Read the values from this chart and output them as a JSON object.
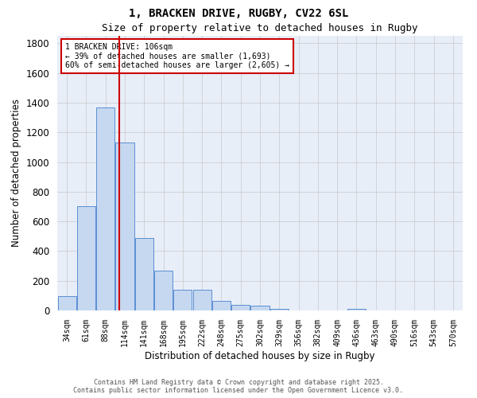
{
  "title1": "1, BRACKEN DRIVE, RUGBY, CV22 6SL",
  "title2": "Size of property relative to detached houses in Rugby",
  "xlabel": "Distribution of detached houses by size in Rugby",
  "ylabel": "Number of detached properties",
  "categories": [
    "34sqm",
    "61sqm",
    "88sqm",
    "114sqm",
    "141sqm",
    "168sqm",
    "195sqm",
    "222sqm",
    "248sqm",
    "275sqm",
    "302sqm",
    "329sqm",
    "356sqm",
    "382sqm",
    "409sqm",
    "436sqm",
    "463sqm",
    "490sqm",
    "516sqm",
    "543sqm",
    "570sqm"
  ],
  "values": [
    95,
    700,
    1370,
    1130,
    490,
    270,
    140,
    140,
    65,
    35,
    30,
    10,
    0,
    0,
    0,
    10,
    0,
    0,
    0,
    0,
    0
  ],
  "bar_color": "#c5d8f0",
  "bar_edge_color": "#5b8fd4",
  "vline_x": 2.72,
  "vline_color": "#cc0000",
  "annotation_text": "1 BRACKEN DRIVE: 106sqm\n← 39% of detached houses are smaller (1,693)\n60% of semi-detached houses are larger (2,605) →",
  "annotation_box_color": "#cc0000",
  "ylim": [
    0,
    1850
  ],
  "yticks": [
    0,
    200,
    400,
    600,
    800,
    1000,
    1200,
    1400,
    1600,
    1800
  ],
  "grid_color": "#c8c8c8",
  "bg_color": "#e8eef8",
  "footer1": "Contains HM Land Registry data © Crown copyright and database right 2025.",
  "footer2": "Contains public sector information licensed under the Open Government Licence v3.0."
}
